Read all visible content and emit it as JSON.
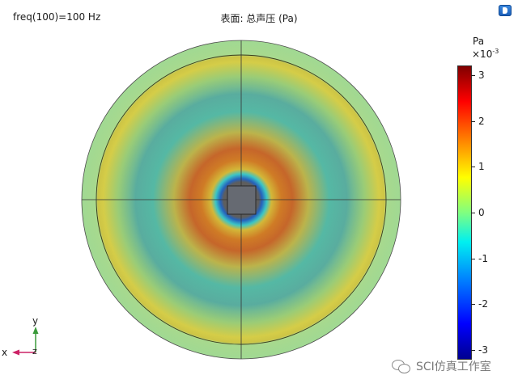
{
  "freq_label": "freq(100)=100 Hz",
  "plot_title": "表面: 总声压 (Pa)",
  "colorbar": {
    "unit": "Pa",
    "multiplier": "×10",
    "exponent": "-3",
    "ticks": [
      {
        "value": 3,
        "label": "3"
      },
      {
        "value": 2,
        "label": "2"
      },
      {
        "value": 1,
        "label": "1"
      },
      {
        "value": 0,
        "label": "0"
      },
      {
        "value": -1,
        "label": "-1"
      },
      {
        "value": -2,
        "label": "-2"
      },
      {
        "value": -3,
        "label": "-3"
      }
    ],
    "range": [
      -3.2,
      3.2
    ]
  },
  "axes": {
    "y_label": "y",
    "x_label": "x",
    "z_label": "z"
  },
  "colors": {
    "y_axis_arrow": "#3a9a3a",
    "x_axis_arrow": "#cc2266",
    "mesh_lines": "#333333"
  },
  "view_button_icon": "view-mode-icon",
  "watermark": {
    "icon": "wechat-icon",
    "text": "SCI仿真工作室"
  }
}
